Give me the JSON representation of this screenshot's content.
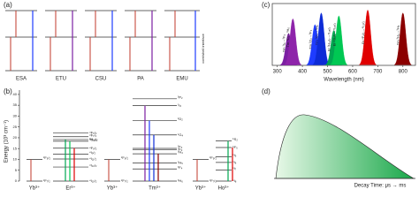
{
  "panel_a": {
    "label": "(a)",
    "mechanisms": [
      "ESA",
      "ETU",
      "CSU",
      "PA",
      "EMU"
    ],
    "interface": "core/shell interface"
  },
  "panel_b": {
    "label": "(b)",
    "ylabel": "Energy (10³ cm⁻¹)",
    "ylim": [
      0,
      42
    ],
    "yticks": [
      0,
      5,
      10,
      15,
      20,
      25,
      30,
      35,
      40
    ],
    "ions": [
      {
        "name": "Yb³⁺",
        "levels": [
          {
            "label": "²F₇/₂",
            "energy": 0
          },
          {
            "label": "²F₅/₂",
            "energy": 10
          }
        ]
      },
      {
        "name": "Er³⁺",
        "levels": [
          {
            "label": "⁴I₁₅/₂",
            "energy": 0
          },
          {
            "label": "⁴I₁₃/₂",
            "energy": 6.5
          },
          {
            "label": "⁴I₁₁/₂",
            "energy": 10.2
          },
          {
            "label": "⁴I₉/₂",
            "energy": 12.4
          },
          {
            "label": "⁴F₉/₂",
            "energy": 15.2
          },
          {
            "label": "⁴S₃/₂",
            "energy": 18.4
          },
          {
            "label": "²H₁₁/₂",
            "energy": 19.2
          },
          {
            "label": "⁴F₇/₂",
            "energy": 20.5
          },
          {
            "label": "⁴F₅/₂",
            "energy": 22.2
          }
        ]
      },
      {
        "name": "Yb³⁺",
        "levels": [
          {
            "label": "²F₇/₂",
            "energy": 0
          },
          {
            "label": "²F₅/₂",
            "energy": 10
          }
        ]
      },
      {
        "name": "Tm³⁺",
        "levels": [
          {
            "label": "³H₆",
            "energy": 0
          },
          {
            "label": "³F₄",
            "energy": 5.6
          },
          {
            "label": "³H₅",
            "energy": 8.3
          },
          {
            "label": "³H₄",
            "energy": 12.6
          },
          {
            "label": "³F₃",
            "energy": 14.5
          },
          {
            "label": "³F₂",
            "energy": 15.1
          },
          {
            "label": "¹G₄",
            "energy": 21.3
          },
          {
            "label": "¹D₂",
            "energy": 27.9
          },
          {
            "label": "¹I₆",
            "energy": 34.8
          },
          {
            "label": "³P₂",
            "energy": 38
          }
        ]
      },
      {
        "name": "Yb³⁺",
        "levels": [
          {
            "label": "²F₇/₂",
            "energy": 0
          },
          {
            "label": "²F₅/₂",
            "energy": 10
          }
        ]
      },
      {
        "name": "Ho³⁺",
        "levels": [
          {
            "label": "⁵I₈",
            "energy": 0
          },
          {
            "label": "⁵I₇",
            "energy": 5.1
          },
          {
            "label": "⁵I₆",
            "energy": 8.6
          },
          {
            "label": "⁵I₅",
            "energy": 11.2
          },
          {
            "label": "⁵F₅",
            "energy": 15.5
          },
          {
            "label": "⁵S₂",
            "energy": 18.5
          }
        ]
      }
    ]
  },
  "chart_data": {
    "type": "spectrum",
    "label": "(c)",
    "xlabel": "Wavelength (nm)",
    "xlim": [
      280,
      850
    ],
    "xticks": [
      300,
      400,
      500,
      600,
      700,
      800
    ],
    "series": [
      {
        "name": "Tm ¹I₆→³F₄",
        "color": "#7b1fa2",
        "center": 345,
        "height": 0.55
      },
      {
        "name": "Tm ¹D₂→³H₆",
        "color": "#8e24aa",
        "center": 362,
        "height": 0.8
      },
      {
        "name": "Tm ¹D₂→³F₄",
        "color": "#1e3cff",
        "center": 450,
        "height": 0.7
      },
      {
        "name": "Tm ¹G₄→³H₆",
        "color": "#0d2bd6",
        "center": 475,
        "height": 0.9
      },
      {
        "name": "Er ²H₁₁/₂→⁴I₁₅/₂",
        "color": "#00a651",
        "center": 525,
        "height": 0.6
      },
      {
        "name": "Er ⁴S₃/₂→⁴I₁₅/₂",
        "color": "#00c853",
        "center": 545,
        "height": 0.85
      },
      {
        "name": "Er ⁴F₉/₂→⁴I₁₅/₂",
        "color": "#e00000",
        "center": 660,
        "height": 0.95
      },
      {
        "name": "Tm ³H₄→³H₆",
        "color": "#8b0000",
        "center": 800,
        "height": 0.9
      }
    ]
  },
  "panel_d": {
    "label": "(d)",
    "caption": "Decay Time: μs → ms"
  }
}
